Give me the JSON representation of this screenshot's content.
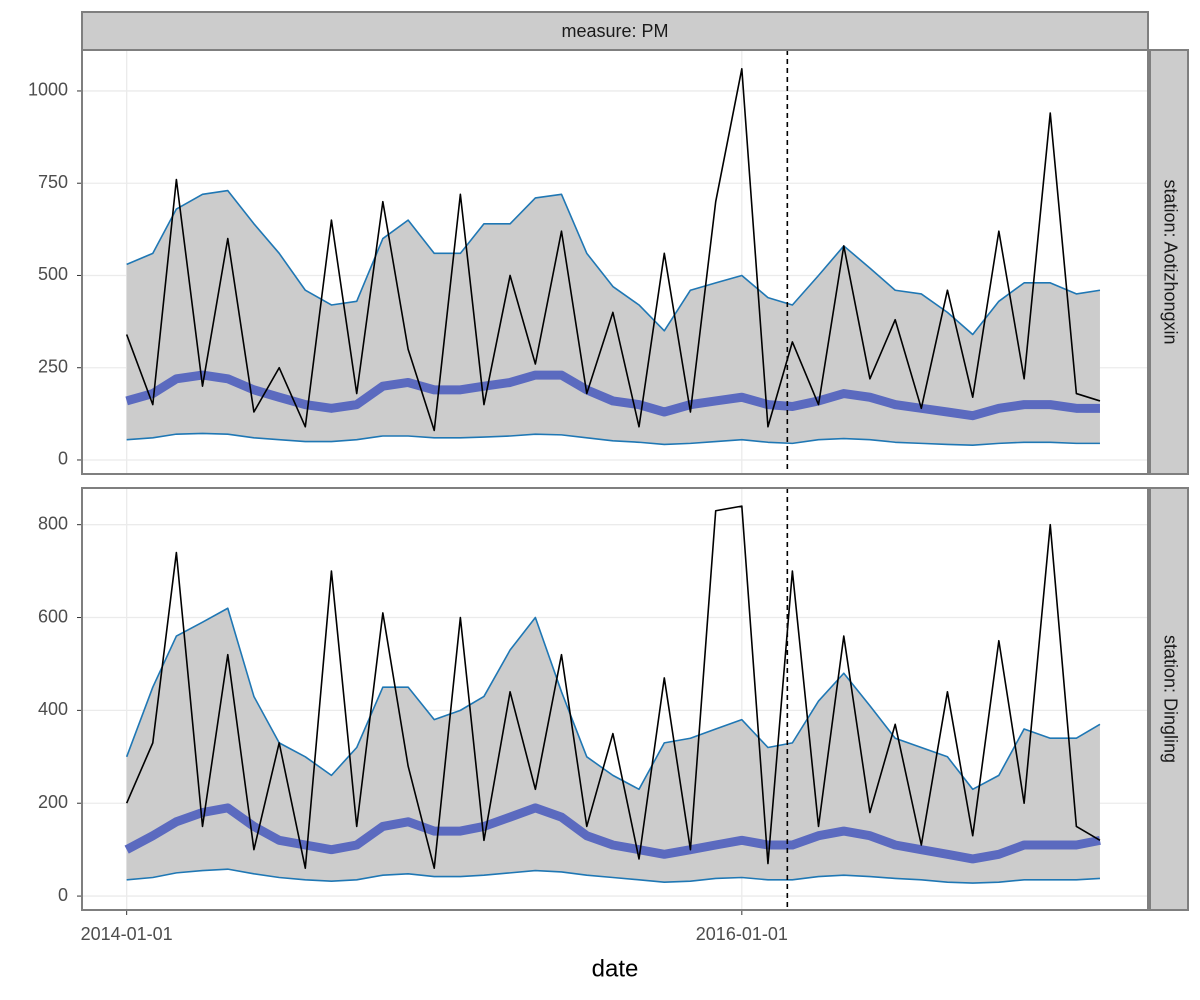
{
  "chart_data": [
    {
      "type": "line",
      "facet_title": "measure: PM",
      "facet_label": "station: Aotizhongxin",
      "x": [
        "2014-01-01",
        "2014-02-01",
        "2014-03-01",
        "2014-04-01",
        "2014-05-01",
        "2014-06-01",
        "2014-07-01",
        "2014-08-01",
        "2014-09-01",
        "2014-10-01",
        "2014-11-01",
        "2014-12-01",
        "2015-01-01",
        "2015-02-01",
        "2015-03-01",
        "2015-04-01",
        "2015-05-01",
        "2015-06-01",
        "2015-07-01",
        "2015-08-01",
        "2015-09-01",
        "2015-10-01",
        "2015-11-01",
        "2015-12-01",
        "2016-01-01",
        "2016-02-01",
        "2016-03-01",
        "2016-04-01",
        "2016-05-01",
        "2016-06-01",
        "2016-07-01",
        "2016-08-01",
        "2016-09-01",
        "2016-10-01",
        "2016-11-01",
        "2016-12-01",
        "2017-01-01",
        "2017-02-01",
        "2017-03-01"
      ],
      "xlim": [
        "2013-11-09",
        "2017-04-27"
      ],
      "xticks": [
        "2014-01-01",
        "2016-01-01"
      ],
      "ylim": [
        -38,
        1111
      ],
      "yticks": [
        0,
        250,
        500,
        750,
        1000
      ],
      "grid": true,
      "vline": "2016-02-24",
      "fill_between": [
        0,
        1
      ],
      "fill_color": "#cccccc",
      "series": [
        {
          "color": "#1f77b4",
          "width": 1.6,
          "values": [
            530,
            560,
            680,
            720,
            730,
            640,
            560,
            460,
            420,
            430,
            600,
            650,
            560,
            560,
            640,
            640,
            710,
            720,
            560,
            470,
            420,
            350,
            460,
            480,
            500,
            440,
            420,
            500,
            580,
            520,
            460,
            450,
            400,
            340,
            430,
            480,
            480,
            450,
            460
          ]
        },
        {
          "color": "#1f77b4",
          "width": 1.6,
          "values": [
            55,
            60,
            70,
            72,
            70,
            60,
            55,
            50,
            50,
            55,
            65,
            65,
            60,
            60,
            62,
            65,
            70,
            68,
            60,
            52,
            48,
            42,
            45,
            50,
            55,
            48,
            45,
            55,
            58,
            55,
            48,
            45,
            42,
            40,
            45,
            48,
            48,
            45,
            45
          ]
        },
        {
          "color": "#5b6abf",
          "width": 9,
          "values": [
            160,
            180,
            220,
            230,
            220,
            190,
            170,
            150,
            140,
            150,
            200,
            210,
            190,
            190,
            200,
            210,
            230,
            230,
            190,
            160,
            150,
            130,
            150,
            160,
            170,
            150,
            145,
            160,
            180,
            170,
            150,
            140,
            130,
            120,
            140,
            150,
            150,
            140,
            140
          ]
        },
        {
          "color": "#000000",
          "width": 1.6,
          "values": [
            340,
            150,
            760,
            200,
            600,
            130,
            250,
            90,
            650,
            180,
            700,
            300,
            80,
            720,
            150,
            500,
            260,
            620,
            180,
            400,
            90,
            560,
            130,
            700,
            1060,
            90,
            320,
            150,
            580,
            220,
            380,
            140,
            460,
            170,
            620,
            220,
            940,
            180,
            160
          ]
        }
      ]
    },
    {
      "type": "line",
      "facet_label": "station: Dingling",
      "x_label": "date",
      "x": [
        "2014-01-01",
        "2014-02-01",
        "2014-03-01",
        "2014-04-01",
        "2014-05-01",
        "2014-06-01",
        "2014-07-01",
        "2014-08-01",
        "2014-09-01",
        "2014-10-01",
        "2014-11-01",
        "2014-12-01",
        "2015-01-01",
        "2015-02-01",
        "2015-03-01",
        "2015-04-01",
        "2015-05-01",
        "2015-06-01",
        "2015-07-01",
        "2015-08-01",
        "2015-09-01",
        "2015-10-01",
        "2015-11-01",
        "2015-12-01",
        "2016-01-01",
        "2016-02-01",
        "2016-03-01",
        "2016-04-01",
        "2016-05-01",
        "2016-06-01",
        "2016-07-01",
        "2016-08-01",
        "2016-09-01",
        "2016-10-01",
        "2016-11-01",
        "2016-12-01",
        "2017-01-01",
        "2017-02-01",
        "2017-03-01"
      ],
      "xlim": [
        "2013-11-09",
        "2017-04-27"
      ],
      "xticks": [
        "2014-01-01",
        "2016-01-01"
      ],
      "ylim": [
        -30,
        879
      ],
      "yticks": [
        0,
        200,
        400,
        600,
        800
      ],
      "grid": true,
      "vline": "2016-02-24",
      "fill_between": [
        0,
        1
      ],
      "fill_color": "#cccccc",
      "series": [
        {
          "color": "#1f77b4",
          "width": 1.6,
          "values": [
            300,
            450,
            560,
            590,
            620,
            430,
            330,
            300,
            260,
            320,
            450,
            450,
            380,
            400,
            430,
            530,
            600,
            440,
            300,
            260,
            230,
            330,
            340,
            360,
            380,
            320,
            330,
            420,
            480,
            410,
            340,
            320,
            300,
            230,
            260,
            360,
            340,
            340,
            370
          ]
        },
        {
          "color": "#1f77b4",
          "width": 1.6,
          "values": [
            35,
            40,
            50,
            55,
            58,
            48,
            40,
            35,
            32,
            35,
            45,
            48,
            42,
            42,
            45,
            50,
            55,
            52,
            45,
            40,
            35,
            30,
            32,
            38,
            40,
            35,
            35,
            42,
            45,
            42,
            38,
            35,
            30,
            28,
            30,
            35,
            35,
            35,
            38
          ]
        },
        {
          "color": "#5b6abf",
          "width": 9,
          "values": [
            100,
            130,
            160,
            180,
            190,
            150,
            120,
            110,
            100,
            110,
            150,
            160,
            140,
            140,
            150,
            170,
            190,
            170,
            130,
            110,
            100,
            90,
            100,
            110,
            120,
            110,
            110,
            130,
            140,
            130,
            110,
            100,
            90,
            80,
            90,
            110,
            110,
            110,
            120
          ]
        },
        {
          "color": "#000000",
          "width": 1.6,
          "values": [
            200,
            330,
            740,
            150,
            520,
            100,
            330,
            60,
            700,
            150,
            610,
            280,
            60,
            600,
            120,
            440,
            230,
            520,
            150,
            350,
            80,
            470,
            100,
            830,
            840,
            70,
            700,
            150,
            560,
            180,
            370,
            110,
            440,
            130,
            550,
            200,
            800,
            150,
            120
          ]
        }
      ]
    }
  ]
}
